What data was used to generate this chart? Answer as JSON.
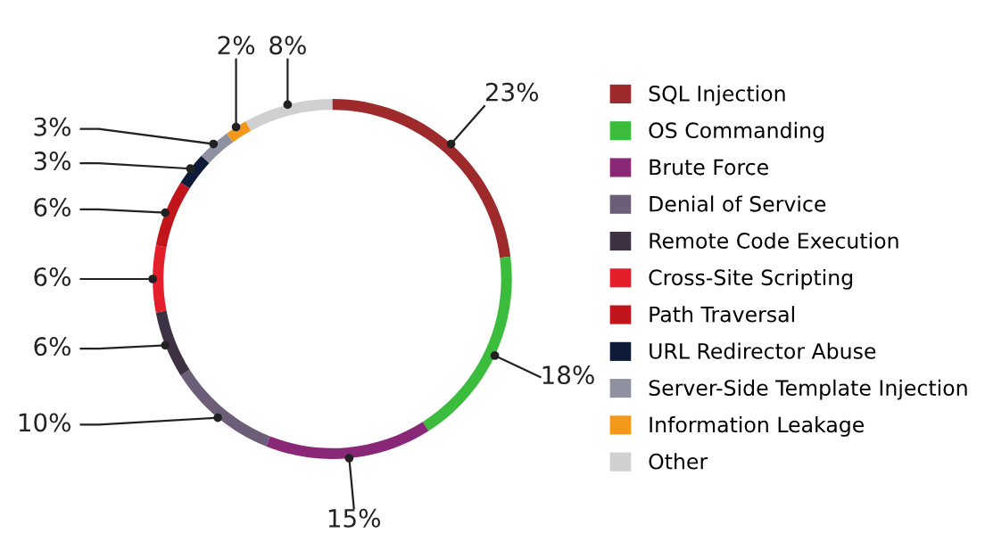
{
  "chart_data": {
    "type": "donut",
    "categories": [
      "SQL Injection",
      "OS Commanding",
      "Brute Force",
      "Denial of Service",
      "Remote Code Execution",
      "Cross-Site Scripting",
      "Path Traversal",
      "URL Redirector Abuse",
      "Server-Side Template Injection",
      "Information Leakage",
      "Other"
    ],
    "values": [
      23,
      18,
      15,
      10,
      6,
      6,
      6,
      3,
      3,
      2,
      8
    ],
    "value_labels": [
      "23%",
      "18%",
      "15%",
      "10%",
      "6%",
      "6%",
      "6%",
      "3%",
      "3%",
      "2%",
      "8%"
    ],
    "colors": [
      "#9e2a2b",
      "#3cbc3c",
      "#8a2878",
      "#6c5e78",
      "#3d3243",
      "#e41e2b",
      "#c0151b",
      "#0d1b38",
      "#8d91a2",
      "#f4981c",
      "#d0d0d0"
    ],
    "legend": "right"
  }
}
